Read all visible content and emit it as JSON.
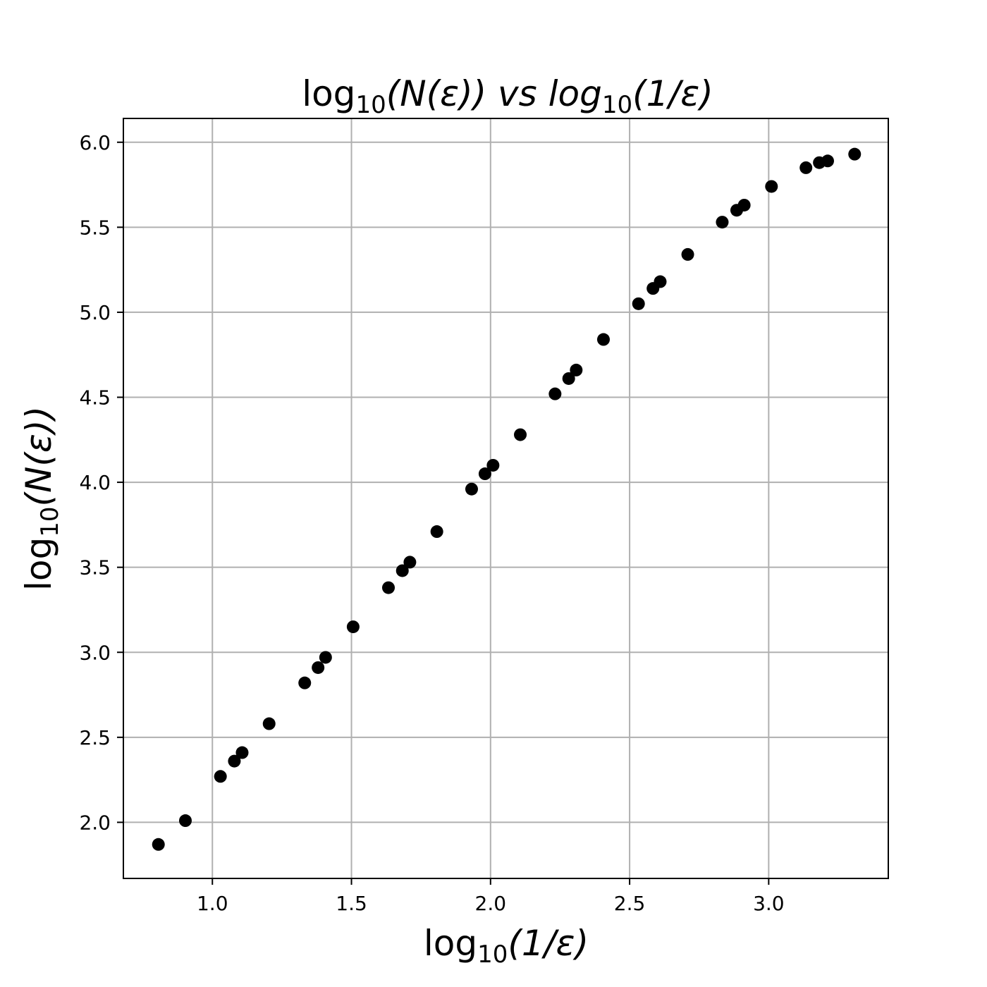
{
  "chart_data": {
    "type": "scatter",
    "title": {
      "pre": "log",
      "sub": "10",
      "mid": "(N(ε)) vs log",
      "sub2": "10",
      "post": "(1/ε)"
    },
    "xlabel": {
      "pre": "log",
      "sub": "10",
      "post": "(1/ε)"
    },
    "ylabel": {
      "pre": "log",
      "sub": "10",
      "post": "(N(ε))"
    },
    "xlim": [
      0.68,
      3.43
    ],
    "ylim": [
      1.67,
      6.14
    ],
    "xticks": [
      "1.0",
      "1.5",
      "2.0",
      "2.5",
      "3.0"
    ],
    "yticks": [
      "2.0",
      "2.5",
      "3.0",
      "3.5",
      "4.0",
      "4.5",
      "5.0",
      "5.5",
      "6.0"
    ],
    "grid": true,
    "marker_color": "#000000",
    "grid_color": "#b0b0b0",
    "series": [
      {
        "x": [
          0.806,
          0.903,
          1.029,
          1.079,
          1.107,
          1.204,
          1.332,
          1.38,
          1.407,
          1.506,
          1.633,
          1.683,
          1.71,
          1.807,
          1.932,
          1.98,
          2.009,
          2.107,
          2.232,
          2.281,
          2.308,
          2.406,
          2.532,
          2.584,
          2.61,
          2.709,
          2.833,
          2.885,
          2.912,
          3.01,
          3.134,
          3.182,
          3.212,
          3.309
        ],
        "y": [
          1.87,
          2.01,
          2.27,
          2.36,
          2.41,
          2.58,
          2.82,
          2.91,
          2.97,
          3.15,
          3.38,
          3.48,
          3.53,
          3.71,
          3.96,
          4.05,
          4.1,
          4.28,
          4.52,
          4.61,
          4.66,
          4.84,
          5.05,
          5.14,
          5.18,
          5.34,
          5.53,
          5.6,
          5.63,
          5.74,
          5.85,
          5.88,
          5.89,
          5.93
        ]
      }
    ]
  }
}
